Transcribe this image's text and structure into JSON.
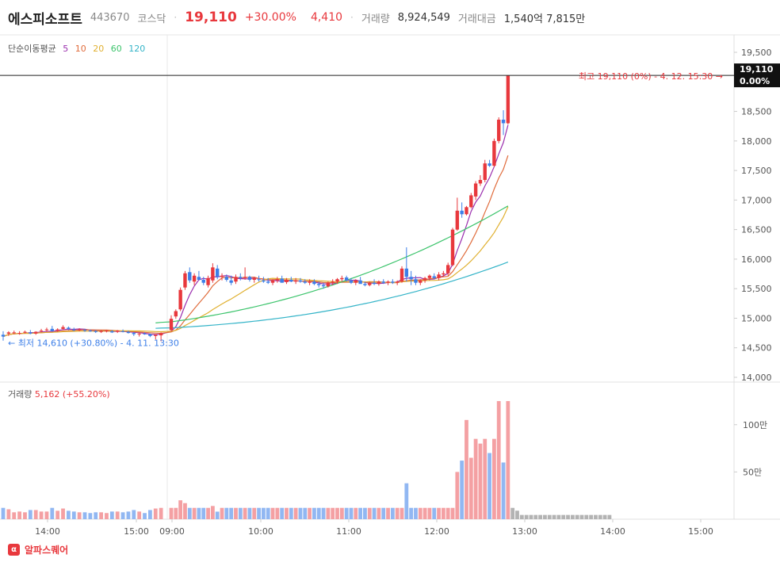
{
  "header": {
    "stock_name": "에스피소프트",
    "stock_code": "443670",
    "market": "코스닥",
    "price": "19,110",
    "change_pct": "+30.00%",
    "change": "4,410",
    "volume_label": "거래량",
    "volume": "8,924,549",
    "amount_label": "거래대금",
    "amount": "1,540억 7,815만"
  },
  "legend": {
    "title": "단순이동평균",
    "periods": [
      {
        "label": "5",
        "color": "#9b2fae"
      },
      {
        "label": "10",
        "color": "#e06c3c"
      },
      {
        "label": "20",
        "color": "#e0b030"
      },
      {
        "label": "60",
        "color": "#3cc46c"
      },
      {
        "label": "120",
        "color": "#34b4c8"
      }
    ]
  },
  "price_axis": {
    "ticks": [
      "19,500",
      "19,000",
      "18,500",
      "18,000",
      "17,500",
      "17,000",
      "16,500",
      "16,000",
      "15,500",
      "15,000",
      "14,500",
      "14,000"
    ],
    "current_price": "19,110",
    "current_pct": "0.00%"
  },
  "annotations": {
    "high": "최고 19,110 (0%) - 4. 12. 15:30",
    "low": "최저 14,610 (+30.80%) - 4. 11. 13:30"
  },
  "volume_legend": {
    "label": "거래량",
    "value": "5,162",
    "pct": "(+55.20%)"
  },
  "volume_axis": {
    "ticks": [
      "100만",
      "50만"
    ]
  },
  "time_axis": {
    "ticks": [
      "14:00",
      "15:00",
      "09:00",
      "10:00",
      "11:00",
      "12:00",
      "13:00",
      "14:00",
      "15:00"
    ]
  },
  "footer": {
    "brand": "알파스퀘어",
    "logo_glyph": "α"
  },
  "colors": {
    "up": "#e8383d",
    "down": "#3d7fe8",
    "vol_up": "#f4a0a3",
    "vol_down": "#91b7f2",
    "vol_after": "#b3b3b3"
  },
  "chart_data": {
    "type": "candlestick",
    "x_ticks": [
      "14:00",
      "15:00",
      "09:00",
      "10:00",
      "11:00",
      "12:00",
      "13:00",
      "14:00",
      "15:00"
    ],
    "y_range": [
      14000,
      19700
    ],
    "candles": [
      [
        14720,
        14780,
        14620,
        14690
      ],
      [
        14740,
        14780,
        14700,
        14760
      ],
      [
        14760,
        14790,
        14730,
        14760
      ],
      [
        14740,
        14780,
        14720,
        14750
      ],
      [
        14760,
        14790,
        14740,
        14770
      ],
      [
        14760,
        14800,
        14730,
        14740
      ],
      [
        14740,
        14780,
        14720,
        14770
      ],
      [
        14780,
        14820,
        14760,
        14790
      ],
      [
        14800,
        14840,
        14780,
        14810
      ],
      [
        14820,
        14870,
        14790,
        14780
      ],
      [
        14790,
        14830,
        14770,
        14810
      ],
      [
        14820,
        14880,
        14800,
        14850
      ],
      [
        14840,
        14860,
        14800,
        14820
      ],
      [
        14810,
        14840,
        14780,
        14800
      ],
      [
        14800,
        14830,
        14780,
        14810
      ],
      [
        14800,
        14820,
        14770,
        14790
      ],
      [
        14790,
        14810,
        14770,
        14780
      ],
      [
        14780,
        14800,
        14750,
        14770
      ],
      [
        14770,
        14800,
        14750,
        14780
      ],
      [
        14780,
        14800,
        14760,
        14790
      ],
      [
        14780,
        14800,
        14750,
        14760
      ],
      [
        14770,
        14800,
        14750,
        14790
      ],
      [
        14780,
        14810,
        14760,
        14770
      ],
      [
        14770,
        14790,
        14740,
        14750
      ],
      [
        14750,
        14770,
        14700,
        14730
      ],
      [
        14730,
        14750,
        14690,
        14740
      ],
      [
        14740,
        14760,
        14720,
        14730
      ],
      [
        14730,
        14740,
        14680,
        14700
      ],
      [
        14700,
        14730,
        14640,
        14720
      ],
      [
        14710,
        14760,
        14610,
        14750
      ],
      [
        14800,
        15050,
        14780,
        14990
      ],
      [
        15030,
        15150,
        14990,
        15120
      ],
      [
        15150,
        15520,
        15120,
        15480
      ],
      [
        15520,
        15800,
        15480,
        15760
      ],
      [
        15780,
        15860,
        15600,
        15640
      ],
      [
        15620,
        15760,
        15560,
        15720
      ],
      [
        15700,
        15800,
        15640,
        15650
      ],
      [
        15650,
        15700,
        15560,
        15600
      ],
      [
        15560,
        15720,
        15520,
        15680
      ],
      [
        15640,
        15930,
        15600,
        15860
      ],
      [
        15840,
        15900,
        15660,
        15700
      ],
      [
        15700,
        15760,
        15640,
        15720
      ],
      [
        15700,
        15740,
        15620,
        15650
      ],
      [
        15640,
        15720,
        15560,
        15600
      ],
      [
        15620,
        15740,
        15580,
        15700
      ],
      [
        15700,
        15760,
        15640,
        15680
      ],
      [
        15680,
        15860,
        15650,
        15700
      ],
      [
        15700,
        15720,
        15620,
        15650
      ],
      [
        15650,
        15700,
        15600,
        15680
      ],
      [
        15660,
        15720,
        15620,
        15650
      ],
      [
        15640,
        15700,
        15600,
        15620
      ],
      [
        15620,
        15680,
        15580,
        15600
      ],
      [
        15600,
        15660,
        15560,
        15640
      ],
      [
        15640,
        15700,
        15600,
        15660
      ],
      [
        15670,
        15720,
        15620,
        15600
      ],
      [
        15610,
        15680,
        15580,
        15650
      ],
      [
        15650,
        15700,
        15610,
        15620
      ],
      [
        15620,
        15680,
        15580,
        15640
      ],
      [
        15640,
        15680,
        15600,
        15620
      ],
      [
        15620,
        15660,
        15580,
        15600
      ],
      [
        15600,
        15660,
        15560,
        15620
      ],
      [
        15620,
        15660,
        15560,
        15580
      ],
      [
        15580,
        15620,
        15520,
        15560
      ],
      [
        15560,
        15600,
        15500,
        15540
      ],
      [
        15540,
        15620,
        15520,
        15600
      ],
      [
        15600,
        15660,
        15560,
        15620
      ],
      [
        15620,
        15680,
        15580,
        15660
      ],
      [
        15660,
        15720,
        15620,
        15680
      ],
      [
        15690,
        15720,
        15620,
        15640
      ],
      [
        15640,
        15680,
        15580,
        15600
      ],
      [
        15600,
        15660,
        15560,
        15640
      ],
      [
        15640,
        15700,
        15600,
        15580
      ],
      [
        15580,
        15620,
        15540,
        15560
      ],
      [
        15560,
        15620,
        15540,
        15600
      ],
      [
        15600,
        15660,
        15560,
        15580
      ],
      [
        15580,
        15640,
        15550,
        15620
      ],
      [
        15620,
        15660,
        15580,
        15600
      ],
      [
        15600,
        15640,
        15560,
        15620
      ],
      [
        15620,
        15660,
        15580,
        15600
      ],
      [
        15600,
        15640,
        15560,
        15620
      ],
      [
        15620,
        15880,
        15600,
        15840
      ],
      [
        15840,
        16200,
        15620,
        15700
      ],
      [
        15700,
        15800,
        15560,
        15660
      ],
      [
        15660,
        15720,
        15560,
        15600
      ],
      [
        15600,
        15660,
        15560,
        15640
      ],
      [
        15640,
        15700,
        15600,
        15680
      ],
      [
        15680,
        15740,
        15640,
        15720
      ],
      [
        15710,
        15760,
        15660,
        15680
      ],
      [
        15680,
        15780,
        15640,
        15740
      ],
      [
        15740,
        15800,
        15700,
        15760
      ],
      [
        15760,
        15940,
        15720,
        15900
      ],
      [
        15900,
        16530,
        15880,
        16500
      ],
      [
        16500,
        17040,
        16480,
        16820
      ],
      [
        16820,
        16960,
        16700,
        16760
      ],
      [
        16760,
        16900,
        16740,
        16880
      ],
      [
        16880,
        17120,
        16860,
        17080
      ],
      [
        17060,
        17320,
        17000,
        17280
      ],
      [
        17280,
        17420,
        17240,
        17340
      ],
      [
        17340,
        17680,
        17300,
        17620
      ],
      [
        17620,
        17680,
        17560,
        17580
      ],
      [
        17580,
        18040,
        17560,
        18000
      ],
      [
        18000,
        18400,
        17960,
        18360
      ],
      [
        18360,
        18520,
        18100,
        18300
      ],
      [
        18300,
        19110,
        18280,
        19110
      ]
    ]
  }
}
